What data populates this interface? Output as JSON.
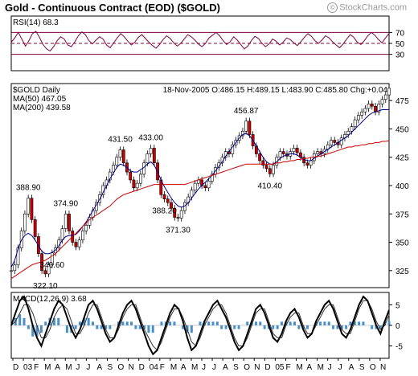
{
  "header": {
    "title": "Gold - Continuous Contract (EOD) ($GOLD)",
    "credit": "StockCharts.com",
    "credit_symbol": "©"
  },
  "chart_data": [
    {
      "type": "line",
      "panel": "rsi",
      "label": "RSI(14) 68.3",
      "ylim": [
        0,
        100
      ],
      "y_ticks": [
        30,
        50,
        70
      ],
      "levels": [
        30,
        50,
        70
      ],
      "series": [
        {
          "name": "RSI(14)",
          "color": "#800040",
          "values": [
            52,
            60,
            70,
            58,
            45,
            55,
            68,
            72,
            61,
            48,
            40,
            36,
            44,
            55,
            62,
            58,
            47,
            44,
            53,
            64,
            71,
            66,
            55,
            49,
            56,
            62,
            58,
            47,
            42,
            51,
            60,
            68,
            62,
            54,
            47,
            52,
            61,
            66,
            59,
            52,
            46,
            41,
            48,
            57,
            64,
            59,
            51,
            45,
            50,
            58,
            66,
            62,
            56,
            49,
            44,
            50,
            60,
            65,
            70,
            64,
            55,
            48,
            53,
            62,
            56,
            48,
            40,
            45,
            55,
            63,
            59,
            50,
            44,
            49,
            58,
            54,
            47,
            52,
            60,
            57,
            51,
            46,
            53,
            61,
            68,
            63,
            55,
            50,
            56,
            64,
            60,
            53,
            47,
            42,
            49,
            58,
            66,
            61,
            52,
            48,
            55,
            64,
            70,
            65,
            57,
            51,
            60,
            68.3
          ]
        }
      ]
    },
    {
      "type": "candlestick",
      "panel": "price",
      "label": "$GOLD Daily",
      "quote": {
        "date": "18-Nov-2005",
        "open_label": "O:",
        "open": "486.15",
        "high_label": "H:",
        "high": "489.15",
        "low_label": "L:",
        "low": "483.90",
        "close_label": "C:",
        "close": "485.80",
        "change_label": "Chg:",
        "change": "+0.04"
      },
      "x_ticks": [
        "D",
        "03",
        "F",
        "M",
        "A",
        "M",
        "J",
        "J",
        "A",
        "S",
        "O",
        "N",
        "D",
        "04",
        "F",
        "M",
        "A",
        "M",
        "J",
        "J",
        "A",
        "S",
        "O",
        "N",
        "D",
        "05",
        "F",
        "M",
        "A",
        "M",
        "J",
        "J",
        "A",
        "S",
        "O",
        "N"
      ],
      "ylim": [
        310,
        490
      ],
      "y_ticks": [
        325,
        350,
        375,
        400,
        425,
        450,
        475
      ],
      "close": [
        325,
        330,
        345,
        360,
        375,
        388.9,
        370,
        355,
        340,
        325,
        322.1,
        330,
        340.6,
        345,
        352,
        362,
        374.9,
        360,
        350,
        346,
        352,
        360,
        365,
        372,
        378,
        385,
        392,
        400,
        405,
        412,
        418,
        425,
        431.5,
        420,
        412,
        405,
        398,
        402,
        410,
        420,
        428,
        433,
        420,
        405,
        392,
        388.2,
        385,
        380,
        372,
        371.3,
        378,
        385,
        390,
        396,
        402,
        405,
        400,
        398,
        404,
        410,
        416,
        420,
        425,
        430,
        428,
        436,
        440,
        444,
        448,
        456.87,
        445,
        435,
        428,
        422,
        418,
        415,
        410.4,
        418,
        425,
        430,
        428,
        426,
        430,
        433,
        429,
        425,
        420,
        418,
        422,
        428,
        430,
        428,
        432,
        436,
        440,
        438,
        436,
        442,
        445,
        448,
        452,
        458,
        462,
        465,
        468,
        472,
        470,
        465,
        472,
        476,
        480,
        485.8
      ],
      "series": [
        {
          "name": "MA(50)",
          "value": "467.05",
          "color": "#00008b",
          "values": [
            328,
            334,
            344,
            352,
            356,
            358,
            356,
            352,
            347,
            342,
            340,
            340,
            341,
            343,
            347,
            352,
            355,
            356,
            356,
            357,
            360,
            364,
            368,
            373,
            378,
            383,
            388,
            394,
            400,
            406,
            411,
            416,
            419,
            418,
            416,
            413,
            412,
            412,
            414,
            416,
            419,
            421,
            418,
            412,
            405,
            399,
            394,
            389,
            385,
            382,
            381,
            382,
            385,
            389,
            393,
            397,
            400,
            403,
            406,
            409,
            413,
            417,
            421,
            426,
            430,
            434,
            438,
            442,
            445,
            446,
            444,
            440,
            435,
            430,
            425,
            421,
            419,
            419,
            421,
            424,
            426,
            427,
            428,
            428,
            427,
            425,
            423,
            422,
            422,
            424,
            426,
            428,
            430,
            432,
            434,
            436,
            438,
            440,
            442,
            444,
            447,
            450,
            453,
            456,
            459,
            462,
            464,
            465,
            466,
            467,
            467,
            467.05
          ]
        },
        {
          "name": "MA(200)",
          "value": "439.58",
          "color": "#cc0000",
          "values": [
            318,
            320,
            322,
            324,
            326,
            328,
            330,
            331,
            332,
            333,
            334,
            336,
            338,
            340,
            343,
            346,
            349,
            352,
            355,
            358,
            361,
            364,
            367,
            370,
            372,
            374,
            376,
            378,
            380,
            382,
            385,
            388,
            390,
            392,
            393,
            394,
            395,
            396,
            397,
            398,
            399,
            400,
            401,
            401,
            401,
            401,
            401,
            401,
            401,
            401,
            401,
            401,
            402,
            403,
            404,
            405,
            406,
            407,
            408,
            409,
            410,
            411,
            412,
            413,
            414,
            415,
            416,
            417,
            418,
            419,
            419,
            419,
            419,
            419,
            419,
            419,
            419,
            419,
            420,
            420,
            421,
            421,
            422,
            422,
            423,
            423,
            424,
            424,
            425,
            425,
            426,
            426,
            427,
            428,
            429,
            430,
            431,
            432,
            433,
            434,
            434,
            435,
            435,
            436,
            436,
            437,
            437,
            438,
            438,
            439,
            439,
            439.58
          ]
        }
      ],
      "annotations": [
        {
          "text": "388.90",
          "at": 5
        },
        {
          "text": "322.10",
          "at": 10
        },
        {
          "text": "374.90",
          "at": 16
        },
        {
          "text": "340.60",
          "at": 12
        },
        {
          "text": "431.50",
          "at": 32
        },
        {
          "text": "433.00",
          "at": 41
        },
        {
          "text": "388.20",
          "at": 45
        },
        {
          "text": "371.30",
          "at": 49
        },
        {
          "text": "456.87",
          "at": 69
        },
        {
          "text": "410.40",
          "at": 76
        }
      ]
    },
    {
      "type": "line",
      "panel": "macd",
      "label": "MACD(12,26,9) 3.68",
      "ylim": [
        -8,
        8
      ],
      "y_ticks": [
        -5,
        0,
        5
      ],
      "series": [
        {
          "name": "MACD",
          "color": "#000000",
          "values": [
            0,
            3,
            6,
            7,
            4,
            0,
            -3,
            -5,
            -2,
            1,
            4,
            6,
            5,
            2,
            -1,
            -3,
            -1,
            2,
            5,
            6,
            4,
            1,
            -2,
            -4,
            -3,
            0,
            3,
            5,
            6,
            4,
            1,
            -2,
            -5,
            -7,
            -6,
            -3,
            0,
            3,
            5,
            4,
            1,
            -3,
            -6,
            -5,
            -2,
            1,
            3,
            5,
            6,
            4,
            2,
            -1,
            -4,
            -6,
            -5,
            -2,
            1,
            4,
            5,
            3,
            0,
            -3,
            -4,
            -2,
            1,
            3,
            4,
            2,
            -1,
            -3,
            -2,
            1,
            3,
            5,
            6,
            4,
            1,
            -2,
            -3,
            -1,
            2,
            5,
            7,
            6,
            3,
            0,
            -2,
            1,
            3.68
          ]
        },
        {
          "name": "Signal",
          "color": "#333333",
          "values": [
            0,
            1,
            3,
            5,
            5,
            3,
            0,
            -3,
            -3,
            -1,
            2,
            4,
            5,
            4,
            1,
            -2,
            -2,
            0,
            3,
            5,
            5,
            2,
            -1,
            -3,
            -3,
            -1,
            2,
            4,
            5,
            5,
            2,
            -1,
            -3,
            -5,
            -6,
            -4,
            -1,
            2,
            4,
            4,
            2,
            -1,
            -4,
            -5,
            -3,
            0,
            2,
            4,
            5,
            5,
            3,
            0,
            -3,
            -5,
            -5,
            -3,
            0,
            3,
            4,
            4,
            1,
            -2,
            -3,
            -3,
            0,
            2,
            3,
            3,
            0,
            -2,
            -2,
            0,
            2,
            4,
            5,
            5,
            2,
            -1,
            -2,
            -2,
            1,
            4,
            6,
            6,
            4,
            1,
            -1,
            0,
            2.5
          ]
        }
      ]
    }
  ]
}
